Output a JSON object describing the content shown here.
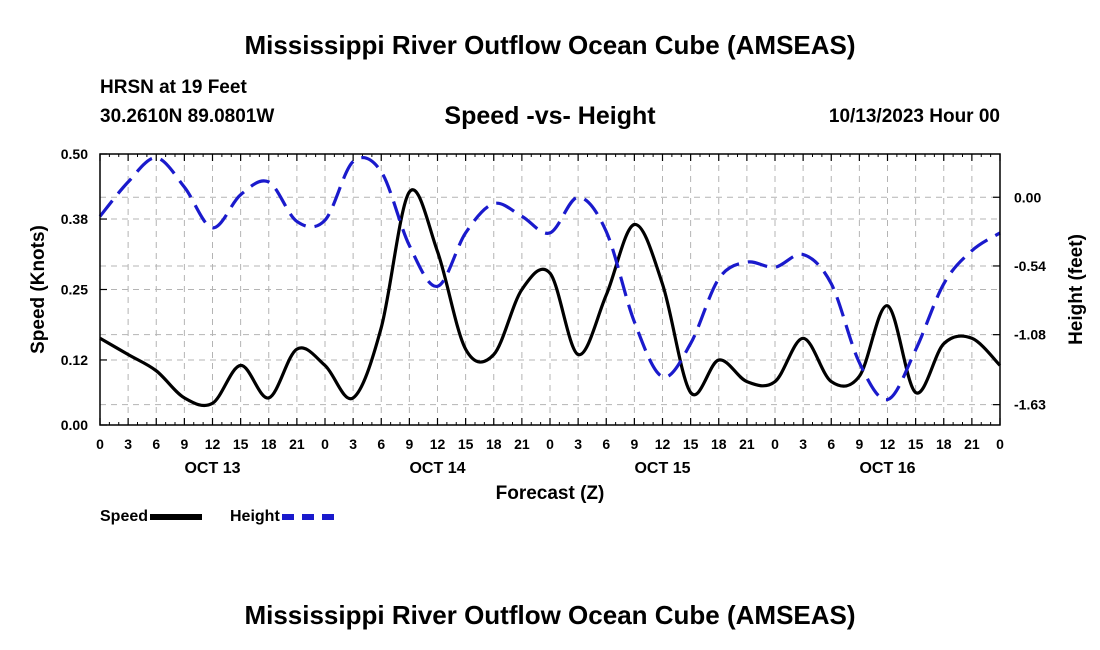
{
  "header": {
    "title": "Mississippi River Outflow Ocean Cube (AMSEAS)",
    "station": "HRSN at 19 Feet",
    "coords": "30.2610N  89.0801W",
    "subtitle": "Speed -vs- Height",
    "timestamp": "10/13/2023 Hour 00"
  },
  "footer": {
    "title": "Mississippi River Outflow Ocean Cube (AMSEAS)"
  },
  "legend": {
    "speed_label": "Speed",
    "height_label": "Height",
    "speed_color": "#000000",
    "height_color": "#1a1acc"
  },
  "chart_data": {
    "type": "line",
    "title": "Speed -vs- Height",
    "xlabel": "Forecast (Z)",
    "ylabel": "Speed (Knots)",
    "y2label": "Height (feet)",
    "x_hours_range": [
      0,
      96
    ],
    "x_tick_labels": [
      "0",
      "3",
      "6",
      "9",
      "12",
      "15",
      "18",
      "21",
      "0",
      "3",
      "6",
      "9",
      "12",
      "15",
      "18",
      "21",
      "0",
      "3",
      "6",
      "9",
      "12",
      "15",
      "18",
      "21",
      "0",
      "3",
      "6",
      "9",
      "12",
      "15",
      "18",
      "21",
      "0"
    ],
    "date_labels": [
      {
        "hour": 12,
        "label": "OCT 13"
      },
      {
        "hour": 36,
        "label": "OCT 14"
      },
      {
        "hour": 60,
        "label": "OCT 15"
      },
      {
        "hour": 84,
        "label": "OCT 16"
      }
    ],
    "ylim": [
      0,
      0.5
    ],
    "y_ticks": [
      "0.00",
      "0.12",
      "0.25",
      "0.38",
      "0.50"
    ],
    "y2lim": [
      -1.79,
      0.34
    ],
    "y2_ticks": [
      "0.00",
      "-0.54",
      "-1.08",
      "-1.63"
    ],
    "series": [
      {
        "name": "Speed",
        "axis": "left",
        "color": "#000000",
        "x": [
          0,
          3,
          6,
          9,
          12,
          15,
          18,
          21,
          24,
          27,
          30,
          33,
          36,
          39,
          42,
          45,
          48,
          51,
          54,
          57,
          60,
          63,
          66,
          69,
          72,
          75,
          78,
          81,
          84,
          87,
          90,
          93,
          96
        ],
        "values": [
          0.16,
          0.13,
          0.1,
          0.05,
          0.04,
          0.11,
          0.05,
          0.14,
          0.11,
          0.05,
          0.18,
          0.43,
          0.32,
          0.14,
          0.13,
          0.25,
          0.28,
          0.13,
          0.24,
          0.37,
          0.26,
          0.06,
          0.12,
          0.08,
          0.08,
          0.16,
          0.08,
          0.09,
          0.22,
          0.06,
          0.15,
          0.16,
          0.11
        ]
      },
      {
        "name": "Height",
        "axis": "right",
        "color": "#1a1acc",
        "x": [
          0,
          3,
          6,
          9,
          12,
          15,
          18,
          21,
          24,
          27,
          30,
          33,
          36,
          39,
          42,
          45,
          48,
          51,
          54,
          57,
          60,
          63,
          66,
          69,
          72,
          75,
          78,
          81,
          84,
          87,
          90,
          93,
          96
        ],
        "values": [
          -0.15,
          0.12,
          0.31,
          0.08,
          -0.24,
          0.02,
          0.12,
          -0.19,
          -0.18,
          0.28,
          0.2,
          -0.38,
          -0.7,
          -0.28,
          -0.05,
          -0.15,
          -0.28,
          0.0,
          -0.27,
          -0.98,
          -1.41,
          -1.15,
          -0.64,
          -0.51,
          -0.55,
          -0.45,
          -0.68,
          -1.3,
          -1.59,
          -1.2,
          -0.68,
          -0.42,
          -0.28
        ]
      }
    ]
  }
}
